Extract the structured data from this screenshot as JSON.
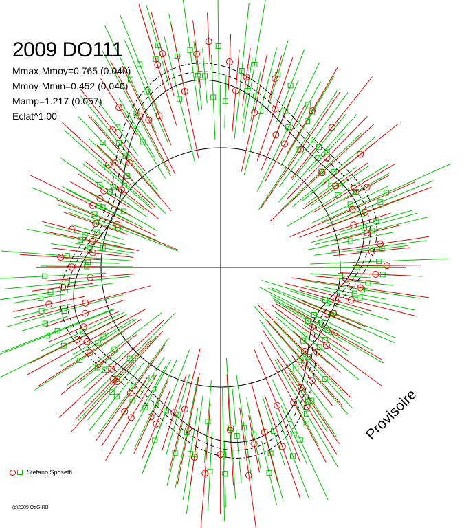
{
  "title": "2009 DO111",
  "stats": [
    "Mmax-Mmoy=0.765 (0.040)",
    "Mmoy-Mmin=0.452 (0.040)",
    "Mamp=1.217 (0.057)",
    "Eclat^1.00"
  ],
  "watermark": "Provisoire",
  "legend": {
    "observer": "Stefano Sposetti"
  },
  "credit": "(c)2009 OdG-RB",
  "colors": {
    "observer_circles": "#e00000",
    "observer_squares": "#00c000",
    "curves": "#000000"
  },
  "chart_data": {
    "type": "polar-lightcurve",
    "description_kind": "rotational lightcurve plotted in polar form (phase 0-1 around the circle, brightness as radius)",
    "reference_circle": "mean magnitude",
    "series": [
      {
        "marker": "circle",
        "color": "#e00000"
      },
      {
        "marker": "square",
        "color": "#00c000"
      }
    ],
    "amplitude_mag": 1.217,
    "max_minus_mean": 0.765,
    "mean_minus_min": 0.452,
    "curves": [
      "fit-solid",
      "fit-dashed",
      "fit-dashdot"
    ],
    "grid": false,
    "legend_position": "bottom-left"
  }
}
